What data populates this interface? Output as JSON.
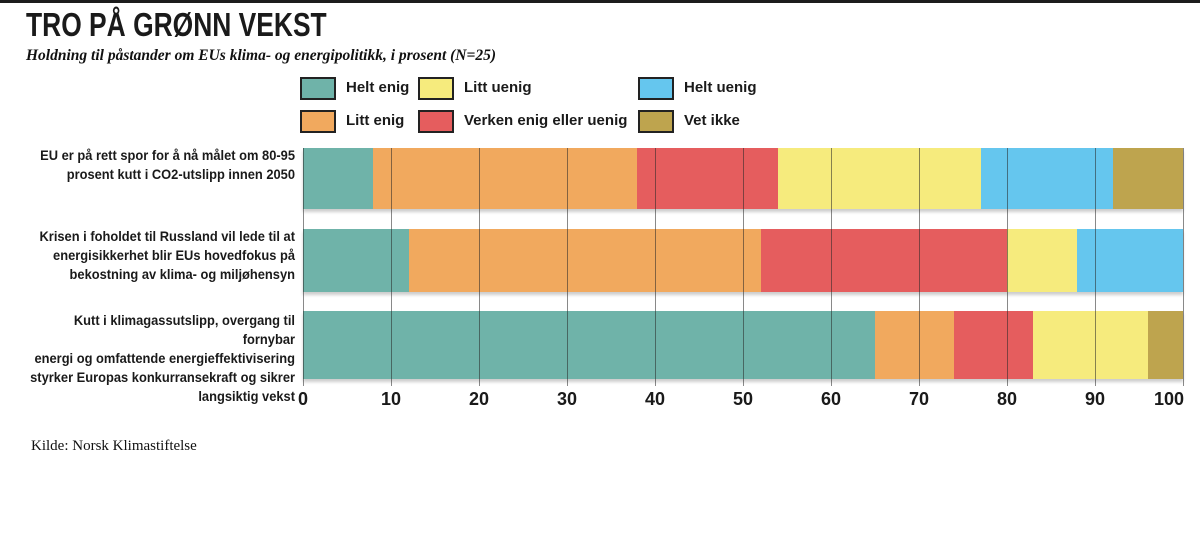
{
  "header": {
    "title": "TRO PÅ GRØNN VEKST",
    "subtitle": "Holdning til påstander om EUs klima- og energipolitikk, i prosent (N=25)"
  },
  "legend": {
    "items": [
      {
        "label": "Helt enig",
        "series": "helt_enig",
        "col": 0,
        "row": 0
      },
      {
        "label": "Litt enig",
        "series": "litt_enig",
        "col": 0,
        "row": 1
      },
      {
        "label": "Litt uenig",
        "series": "litt_uenig",
        "col": 1,
        "row": 0
      },
      {
        "label": "Verken enig eller uenig",
        "series": "verken_enig_eller_uenig",
        "col": 1,
        "row": 1
      },
      {
        "label": "Helt uenig",
        "series": "helt_uenig",
        "col": 2,
        "row": 0
      },
      {
        "label": "Vet ikke",
        "series": "vet_ikke",
        "col": 2,
        "row": 1
      }
    ]
  },
  "chart_data": {
    "type": "bar",
    "orientation": "horizontal",
    "stacked": true,
    "unit": "percent",
    "sample_size": 25,
    "title": "TRO PÅ GRØNN VEKST",
    "subtitle": "Holdning til påstander om EUs klima- og energipolitikk, i prosent (N=25)",
    "xlim": [
      0,
      100
    ],
    "x_ticks": [
      0,
      10,
      20,
      30,
      40,
      50,
      60,
      70,
      80,
      90,
      100
    ],
    "grid": true,
    "legend_position": "top",
    "categories": [
      "EU er på rett spor for å nå målet om 80-95 prosent kutt i CO2-utslipp innen 2050",
      "Krisen i foholdet til Russland vil lede til at energisikkerhet blir EUs hovedfokus på bekostning av klima- og miljøhensyn",
      "Kutt i klimagassutslipp, overgang til fornybar energi og omfattende energieffektivisering styrker Europas konkurransekraft og sikrer langsiktig vekst"
    ],
    "categories_wrapped": [
      "EU er på rett spor for å nå målet om 80-95\nprosent kutt i CO2-utslipp innen 2050",
      "Krisen i foholdet til Russland vil lede til at\nenergisikkerhet blir EUs hovedfokus på\nbekostning av klima- og miljøhensyn",
      "Kutt i klimagassutslipp, overgang til fornybar\nenergi og omfattende energieffektivisering\nstyrker Europas konkurransekraft og sikrer\nlangsiktig vekst"
    ],
    "series": [
      {
        "name": "Helt enig",
        "key": "helt_enig",
        "color": "#6FB3A9",
        "values": [
          8,
          12,
          65
        ]
      },
      {
        "name": "Litt enig",
        "key": "litt_enig",
        "color": "#F1A95E",
        "values": [
          30,
          40,
          9
        ]
      },
      {
        "name": "Verken enig eller uenig",
        "key": "verken_enig_eller_uenig",
        "color": "#E55D5E",
        "values": [
          16,
          28,
          9
        ]
      },
      {
        "name": "Litt uenig",
        "key": "litt_uenig",
        "color": "#F6EB7D",
        "values": [
          23,
          8,
          13
        ]
      },
      {
        "name": "Helt uenig",
        "key": "helt_uenig",
        "color": "#65C6EE",
        "values": [
          15,
          12,
          0
        ]
      },
      {
        "name": "Vet ikke",
        "key": "vet_ikke",
        "color": "#BEA44E",
        "values": [
          8,
          0,
          4
        ]
      }
    ]
  },
  "source": "Kilde: Norsk Klimastiftelse",
  "colors": {
    "top_rule": "#1C1C1C",
    "text": "#1A1A1A",
    "gridline": "rgba(40,40,40,0.55)"
  }
}
